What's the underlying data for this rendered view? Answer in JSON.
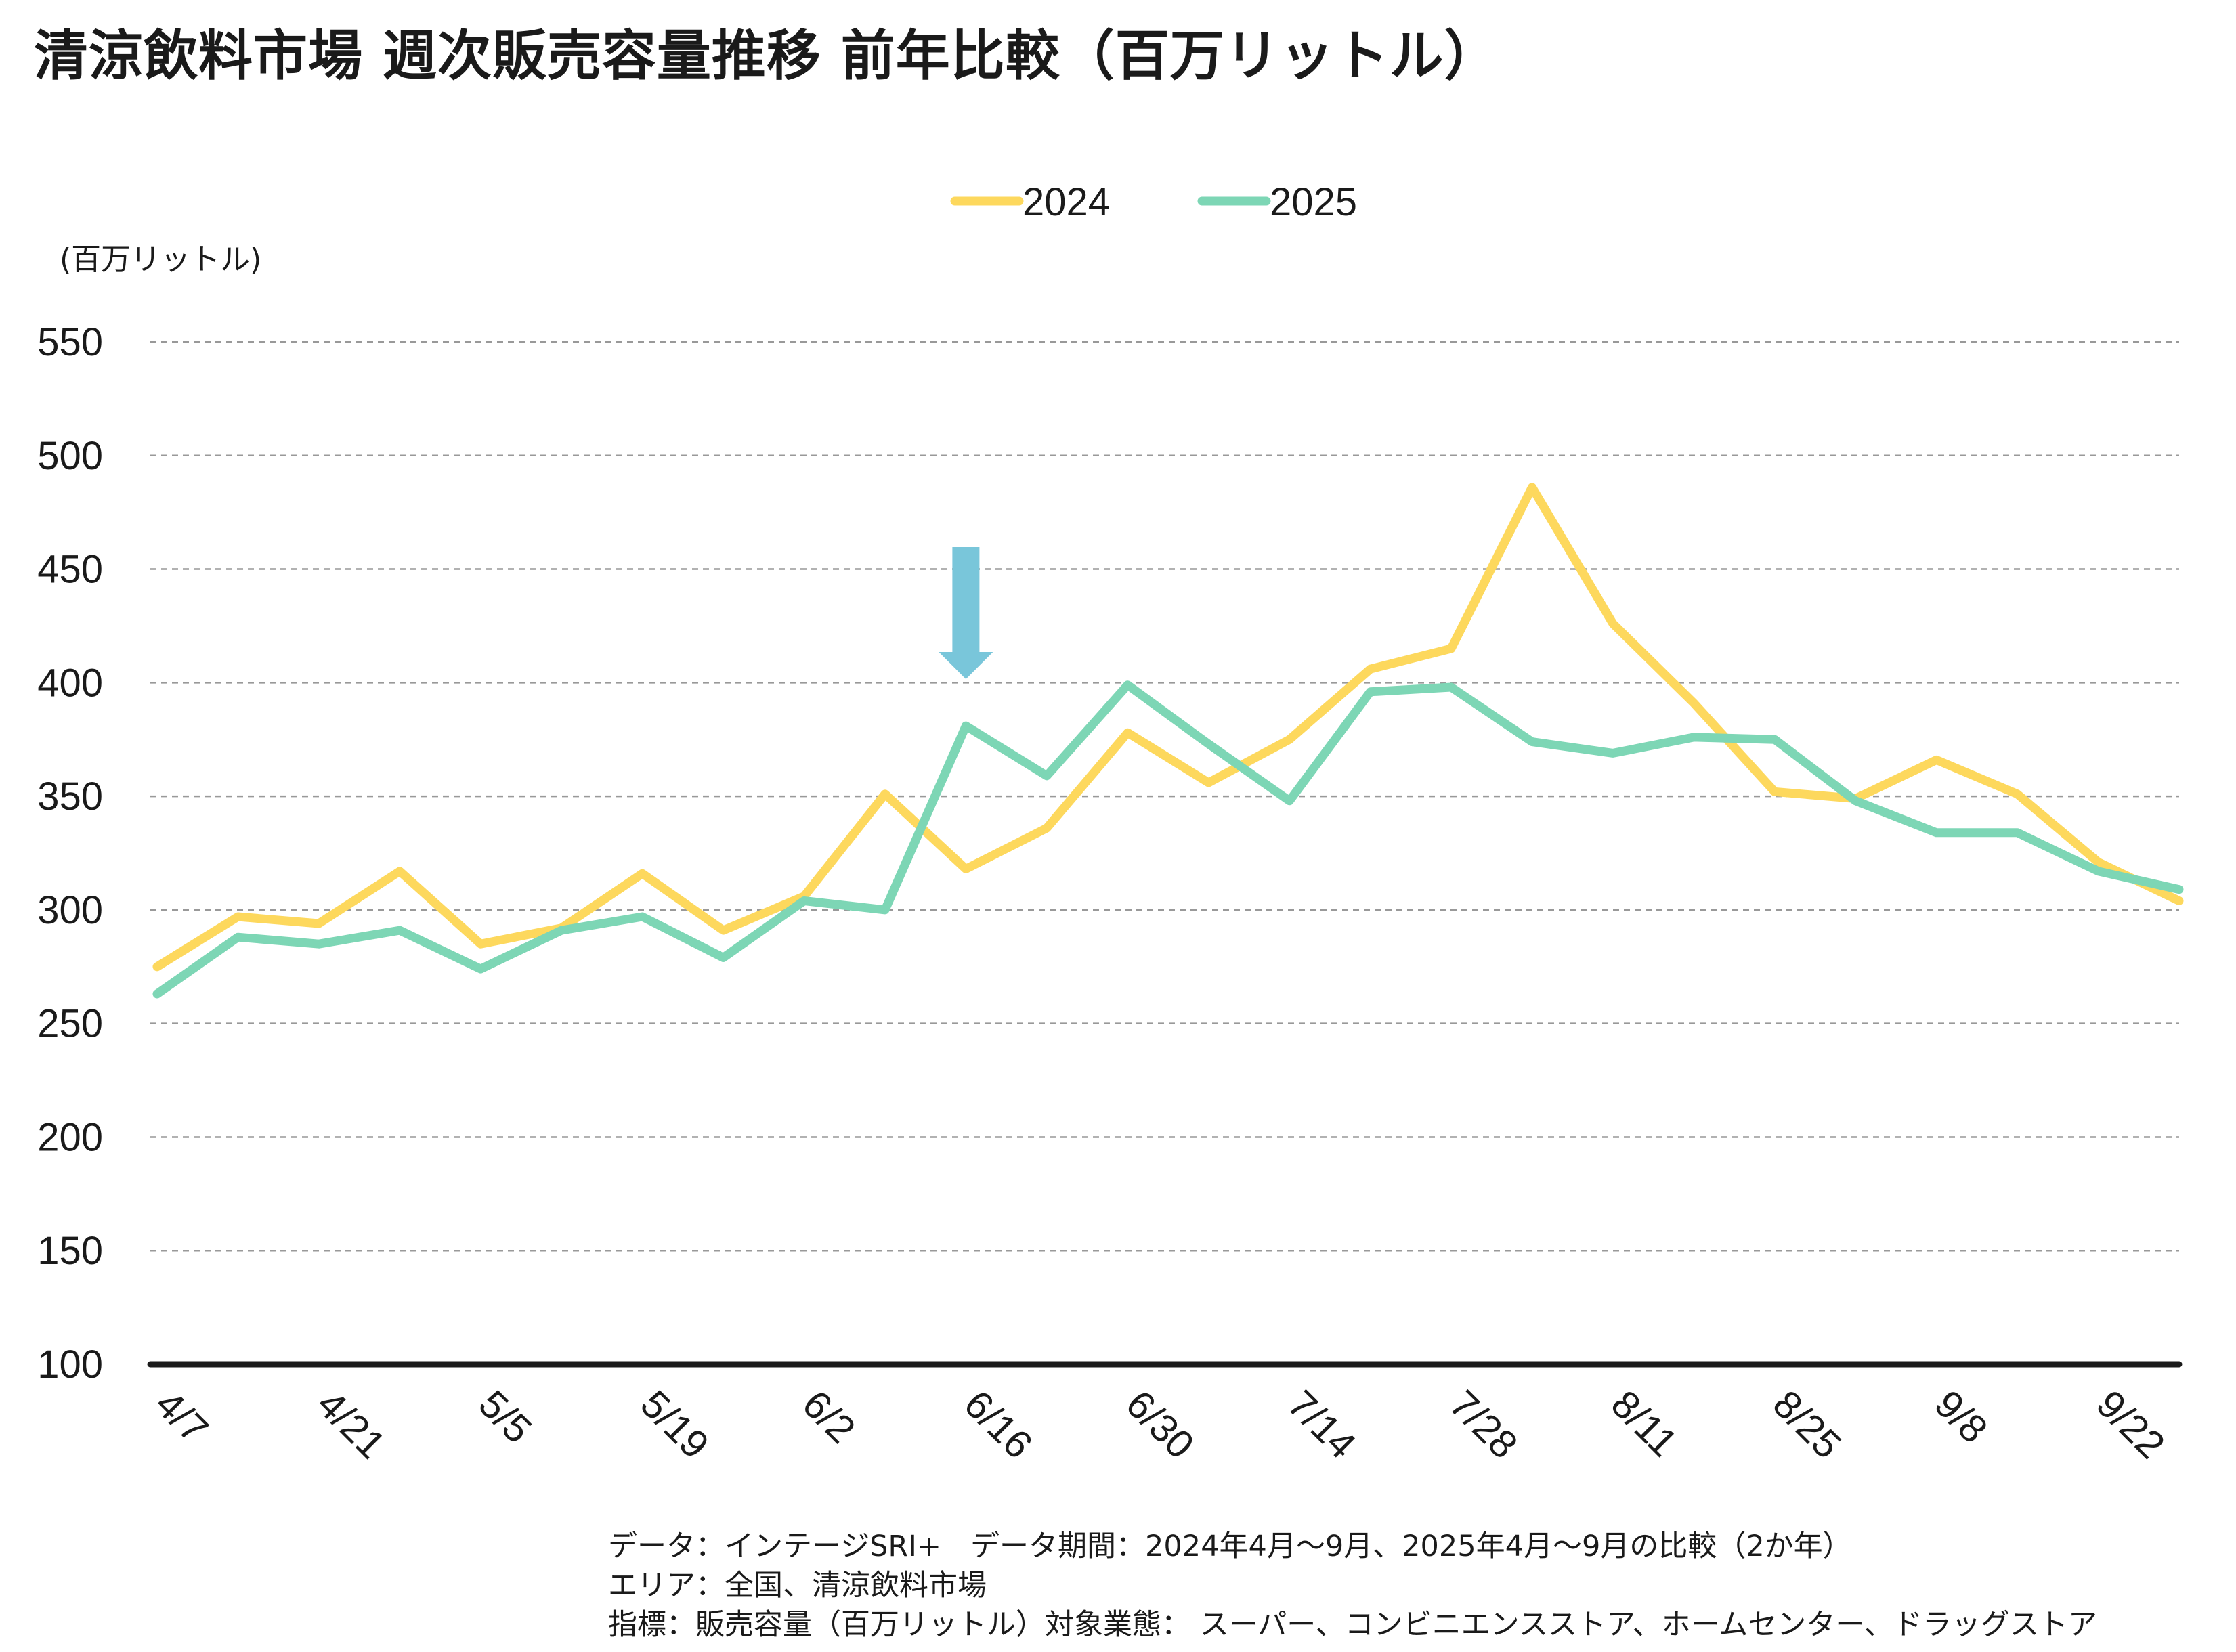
{
  "title": "清涼飲料市場 週次販売容量推移 前年比較（百万リットル）",
  "chart_data": {
    "type": "line",
    "title": "清涼飲料市場 週次販売容量推移 前年比較（百万リットル）",
    "ylabel": "(百万リットル)",
    "xlabel": "",
    "ylim": [
      100,
      550
    ],
    "yticks": [
      100,
      150,
      200,
      250,
      300,
      350,
      400,
      450,
      500,
      550
    ],
    "grid": "horizontal dashed",
    "legend_position": "top-center",
    "x": [
      "4/7",
      "4/14",
      "4/21",
      "4/28",
      "5/5",
      "5/12",
      "5/19",
      "5/26",
      "6/2",
      "6/9",
      "6/16",
      "6/23",
      "6/30",
      "7/7",
      "7/14",
      "7/21",
      "7/28",
      "8/4",
      "8/11",
      "8/18",
      "8/25",
      "9/1",
      "9/8",
      "9/15",
      "9/22",
      "9/29"
    ],
    "xtick_labels": [
      "4/7",
      "4/21",
      "5/5",
      "5/19",
      "6/2",
      "6/16",
      "6/30",
      "7/14",
      "7/28",
      "8/11",
      "8/25",
      "9/8",
      "9/22"
    ],
    "series": [
      {
        "name": "2024",
        "color": "#FDD85D",
        "values": [
          275,
          297,
          294,
          317,
          285,
          292,
          316,
          291,
          306,
          351,
          318,
          336,
          378,
          356,
          375,
          406,
          415,
          486,
          426,
          391,
          352,
          349,
          366,
          351,
          321,
          304
        ]
      },
      {
        "name": "2025",
        "color": "#7DD6B5",
        "values": [
          263,
          288,
          285,
          291,
          274,
          291,
          297,
          279,
          304,
          300,
          381,
          359,
          399,
          373,
          348,
          396,
          398,
          374,
          369,
          376,
          375,
          348,
          334,
          334,
          317,
          309
        ]
      }
    ],
    "annotations": [
      {
        "type": "arrow-down",
        "at_x": "6/16",
        "color": "#79C6DA"
      }
    ]
  },
  "notes": [
    "データ：インテージSRI+　データ期間：2024年4月～9月、2025年4月～9月の比較（2か年）",
    "エリア：全国、清涼飲料市場",
    "指標：販売容量（百万リットル）対象業態： スーパー、コンビニエンスストア、ホームセンター、ドラッグストア"
  ]
}
